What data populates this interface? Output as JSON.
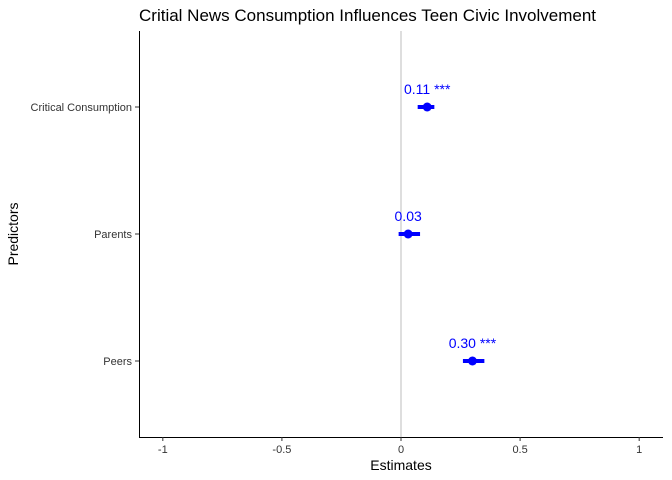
{
  "chart_data": {
    "type": "scatter",
    "title": "Critial News Consumption Influences Teen Civic Involvement",
    "xlabel": "Estimates",
    "ylabel": "Predictors",
    "xlim": [
      -1.1,
      1.1
    ],
    "x_ticks": [
      -1,
      -0.5,
      0,
      0.5,
      1
    ],
    "x_tick_labels": [
      "-1",
      "-0.5",
      "0",
      "0.5",
      "1"
    ],
    "reference_line_x": 0,
    "grid": false,
    "point_color": "#0000ff",
    "reference_line_color": "#bebebe",
    "categories": [
      "Critical Consumption",
      "Parents",
      "Peers"
    ],
    "series": [
      {
        "estimates": [
          0.11,
          0.03,
          0.3
        ],
        "ci_low": [
          0.07,
          -0.01,
          0.26
        ],
        "ci_high": [
          0.14,
          0.08,
          0.35
        ],
        "labels": [
          "0.11 ***",
          "0.03",
          "0.30 ***"
        ]
      }
    ]
  }
}
